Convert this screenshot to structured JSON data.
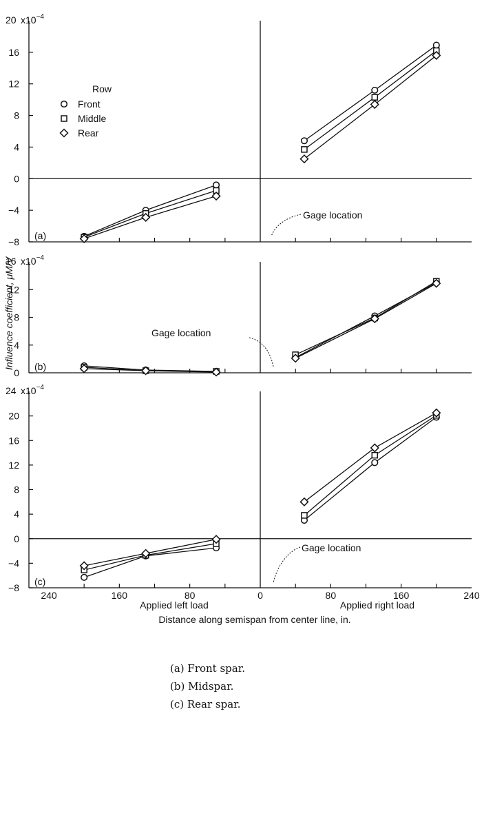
{
  "figure": {
    "y_axis_label": "Influence coefficient, μM/V",
    "x_axis_label": "Distance along semispan from center line, in.",
    "left_load_label": "Applied left load",
    "right_load_label": "Applied right load",
    "x_tick_labels": [
      "240",
      "160",
      "80",
      "0",
      "80",
      "160",
      "240"
    ],
    "legend": {
      "title": "Row",
      "entries": [
        "Front",
        "Middle",
        "Rear"
      ]
    },
    "gage_label": "Gage location",
    "exponent_prefix": "x10",
    "exponent_power": "−4",
    "captions": [
      "(a)  Front spar.",
      "(b)  Midspar.",
      "(c)  Rear spar."
    ]
  },
  "chart_data": [
    {
      "type": "line",
      "panel_label": "(a)",
      "x": [
        -200,
        -130,
        -50,
        50,
        130,
        200
      ],
      "xlim": [
        -240,
        240
      ],
      "ylim": [
        -8,
        20
      ],
      "y_scale_label": "20",
      "y_ticks": [
        -8,
        -4,
        0,
        4,
        8,
        12,
        16
      ],
      "series": [
        {
          "name": "Front",
          "marker": "circle",
          "values": [
            -7.3,
            -4.0,
            -0.8,
            4.8,
            11.2,
            16.9
          ]
        },
        {
          "name": "Middle",
          "marker": "square",
          "values": [
            -7.4,
            -4.4,
            -1.5,
            3.7,
            10.3,
            16.2
          ]
        },
        {
          "name": "Rear",
          "marker": "diamond",
          "values": [
            -7.6,
            -4.9,
            -2.2,
            2.5,
            9.4,
            15.6
          ]
        }
      ]
    },
    {
      "type": "line",
      "panel_label": "(b)",
      "x": [
        -200,
        -130,
        -50,
        40,
        130,
        200
      ],
      "xlim": [
        -240,
        240
      ],
      "ylim": [
        0,
        16
      ],
      "y_scale_label": "16",
      "y_ticks": [
        0,
        4,
        8,
        12
      ],
      "series": [
        {
          "name": "Front",
          "marker": "circle",
          "values": [
            1.0,
            0.4,
            0.2,
            2.2,
            8.2,
            13.0
          ]
        },
        {
          "name": "Middle",
          "marker": "square",
          "values": [
            0.8,
            0.3,
            0.2,
            2.6,
            7.9,
            13.2
          ]
        },
        {
          "name": "Rear",
          "marker": "diamond",
          "values": [
            0.6,
            0.3,
            0.1,
            2.1,
            7.8,
            12.9
          ]
        }
      ]
    },
    {
      "type": "line",
      "panel_label": "(c)",
      "x": [
        -200,
        -130,
        -50,
        50,
        130,
        200
      ],
      "xlim": [
        -240,
        240
      ],
      "ylim": [
        -8,
        24
      ],
      "y_scale_label": "24",
      "y_ticks": [
        -8,
        -4,
        0,
        4,
        8,
        12,
        16,
        20
      ],
      "series": [
        {
          "name": "Front",
          "marker": "circle",
          "values": [
            -6.3,
            -2.8,
            -1.5,
            3.0,
            12.4,
            19.8
          ]
        },
        {
          "name": "Middle",
          "marker": "square",
          "values": [
            -5.1,
            -2.7,
            -0.8,
            3.8,
            13.6,
            20.1
          ]
        },
        {
          "name": "Rear",
          "marker": "diamond",
          "values": [
            -4.4,
            -2.4,
            -0.1,
            6.0,
            14.8,
            20.5
          ]
        }
      ]
    }
  ]
}
